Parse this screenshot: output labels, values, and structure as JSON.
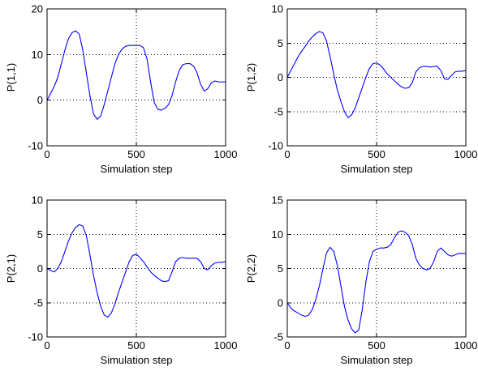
{
  "chart_data": [
    {
      "type": "line",
      "xlabel": "Simulation step",
      "ylabel": "P(1,1)",
      "xlim": [
        0,
        1000
      ],
      "ylim": [
        -10,
        20
      ],
      "xticks": [
        0,
        500,
        1000
      ],
      "yticks": [
        -10,
        0,
        10,
        20
      ],
      "grid": true,
      "color": "#0000ff",
      "series": [
        {
          "x": [
            0,
            20,
            40,
            60,
            80,
            100,
            120,
            140,
            160,
            180,
            200,
            220,
            240,
            260,
            280,
            300,
            320,
            340,
            360,
            380,
            400,
            420,
            440,
            460,
            480,
            500,
            520,
            540,
            560,
            580,
            600,
            620,
            640,
            660,
            680,
            700,
            720,
            740,
            760,
            780,
            800,
            820,
            840,
            860,
            880,
            900,
            920,
            940,
            960,
            980,
            1000
          ],
          "y": [
            0,
            1.5,
            3,
            5,
            8,
            11,
            13.5,
            14.8,
            15.2,
            14.5,
            11,
            6,
            1,
            -3,
            -4.2,
            -3.5,
            -1,
            2,
            5,
            8,
            10,
            11.2,
            11.8,
            12,
            12,
            12,
            12,
            11.5,
            9,
            4,
            -0.5,
            -2,
            -2.2,
            -1.8,
            -1,
            1,
            4,
            6.5,
            7.8,
            8,
            8,
            7.5,
            6,
            3.5,
            2,
            2.5,
            3.8,
            4.2,
            4,
            4,
            4
          ]
        }
      ]
    },
    {
      "type": "line",
      "xlabel": "Simulation step",
      "ylabel": "P(1,2)",
      "xlim": [
        0,
        1000
      ],
      "ylim": [
        -10,
        10
      ],
      "xticks": [
        0,
        500,
        1000
      ],
      "yticks": [
        -10,
        -5,
        0,
        5,
        10
      ],
      "grid": true,
      "color": "#0000ff",
      "series": [
        {
          "x": [
            0,
            20,
            40,
            60,
            80,
            100,
            120,
            140,
            160,
            180,
            200,
            220,
            240,
            260,
            280,
            300,
            320,
            340,
            360,
            380,
            400,
            420,
            440,
            460,
            480,
            500,
            520,
            540,
            560,
            580,
            600,
            620,
            640,
            660,
            680,
            700,
            720,
            740,
            760,
            780,
            800,
            820,
            840,
            860,
            880,
            900,
            920,
            940,
            960,
            980,
            1000
          ],
          "y": [
            0,
            1,
            2,
            3,
            3.8,
            4.5,
            5.3,
            5.9,
            6.4,
            6.7,
            6.5,
            5.3,
            3,
            0.5,
            -1.8,
            -3.5,
            -5,
            -5.9,
            -5.5,
            -4.5,
            -3,
            -1.5,
            0,
            1.3,
            2,
            2.1,
            1.8,
            1.2,
            0.5,
            0,
            -0.5,
            -1,
            -1.4,
            -1.6,
            -1.5,
            -0.8,
            0.8,
            1.4,
            1.6,
            1.6,
            1.5,
            1.6,
            1.6,
            1,
            -0.2,
            -0.3,
            0.3,
            0.8,
            0.9,
            0.9,
            1
          ]
        }
      ]
    },
    {
      "type": "line",
      "xlabel": "Simulation step",
      "ylabel": "P(2,1)",
      "xlim": [
        0,
        1000
      ],
      "ylim": [
        -10,
        10
      ],
      "xticks": [
        0,
        500,
        1000
      ],
      "yticks": [
        -10,
        -5,
        0,
        5,
        10
      ],
      "grid": true,
      "color": "#0000ff",
      "series": [
        {
          "x": [
            0,
            20,
            40,
            60,
            80,
            100,
            120,
            140,
            160,
            180,
            200,
            220,
            240,
            260,
            280,
            300,
            320,
            340,
            360,
            380,
            400,
            420,
            440,
            460,
            480,
            500,
            520,
            540,
            560,
            580,
            600,
            620,
            640,
            660,
            680,
            700,
            720,
            740,
            760,
            780,
            800,
            820,
            840,
            860,
            880,
            900,
            920,
            940,
            960,
            980,
            1000
          ],
          "y": [
            0,
            -0.3,
            -0.5,
            0,
            1,
            2.5,
            4,
            5.2,
            6,
            6.4,
            6.2,
            4.8,
            2,
            -1,
            -3.5,
            -5.5,
            -6.8,
            -7.1,
            -6.5,
            -5.2,
            -3.5,
            -2,
            -0.5,
            1,
            1.9,
            2.1,
            1.6,
            1,
            0.2,
            -0.5,
            -1,
            -1.4,
            -1.8,
            -1.9,
            -1.8,
            -0.5,
            1,
            1.5,
            1.6,
            1.5,
            1.5,
            1.5,
            1.5,
            1,
            0,
            -0.2,
            0.4,
            0.8,
            0.9,
            0.9,
            1
          ]
        }
      ]
    },
    {
      "type": "line",
      "xlabel": "Simulation step",
      "ylabel": "P(2,2)",
      "xlim": [
        0,
        1000
      ],
      "ylim": [
        -5,
        15
      ],
      "xticks": [
        0,
        500,
        1000
      ],
      "yticks": [
        -5,
        0,
        5,
        10,
        15
      ],
      "grid": true,
      "color": "#0000ff",
      "series": [
        {
          "x": [
            0,
            20,
            40,
            60,
            80,
            100,
            120,
            140,
            160,
            180,
            200,
            220,
            240,
            260,
            280,
            300,
            320,
            340,
            360,
            380,
            400,
            420,
            440,
            460,
            480,
            500,
            520,
            540,
            560,
            580,
            600,
            620,
            640,
            660,
            680,
            700,
            720,
            740,
            760,
            780,
            800,
            820,
            840,
            860,
            880,
            900,
            920,
            940,
            960,
            980,
            1000
          ],
          "y": [
            0,
            -0.8,
            -1.2,
            -1.5,
            -1.8,
            -2,
            -1.8,
            -1,
            0.5,
            2.5,
            5,
            7.3,
            8.1,
            7.5,
            5.5,
            2.5,
            -0.5,
            -2.5,
            -3.8,
            -4.4,
            -4,
            -1,
            3,
            6,
            7.5,
            7.8,
            8,
            8,
            8.1,
            8.5,
            9.5,
            10.3,
            10.5,
            10.3,
            9.8,
            8.5,
            6.5,
            5.5,
            5,
            4.8,
            5,
            6,
            7.5,
            8,
            7.5,
            7,
            6.8,
            7,
            7.2,
            7.2,
            7.2
          ]
        }
      ]
    }
  ]
}
